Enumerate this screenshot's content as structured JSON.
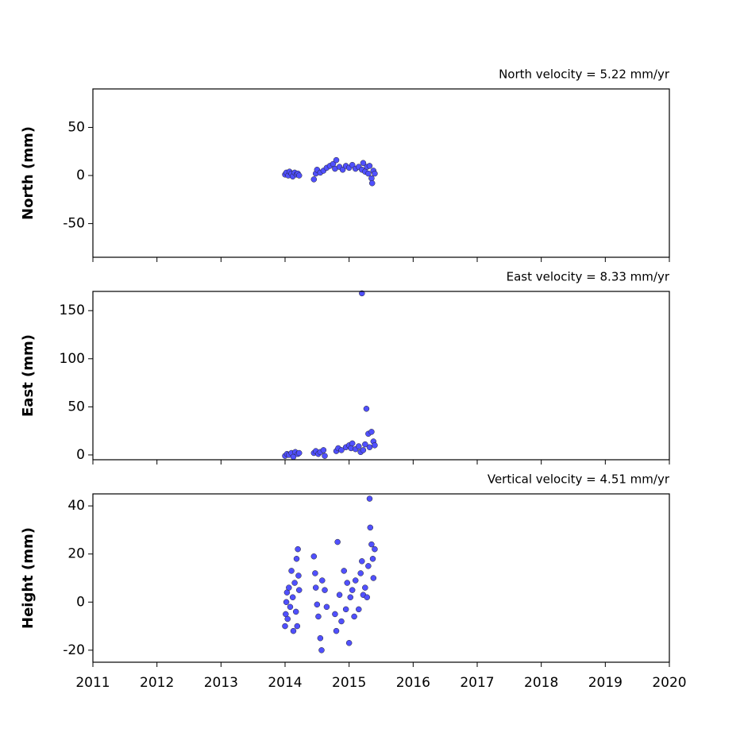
{
  "chart_data": [
    {
      "type": "scatter",
      "title": "North velocity = 5.22 mm/yr",
      "y_label": "North (mm)",
      "color": "#5050ff",
      "x": [
        2014.0,
        2014.02,
        2014.05,
        2014.07,
        2014.1,
        2014.12,
        2014.15,
        2014.18,
        2014.2,
        2014.22,
        2014.45,
        2014.48,
        2014.5,
        2014.55,
        2014.6,
        2014.65,
        2014.7,
        2014.75,
        2014.78,
        2014.8,
        2014.85,
        2014.9,
        2014.95,
        2015.0,
        2015.05,
        2015.1,
        2015.15,
        2015.2,
        2015.22,
        2015.25,
        2015.28,
        2015.3,
        2015.32,
        2015.35,
        2015.36,
        2015.38,
        2015.4
      ],
      "values": [
        1,
        3,
        0,
        4,
        2,
        -1,
        3,
        1,
        2,
        0,
        -4,
        2,
        6,
        3,
        5,
        8,
        10,
        12,
        7,
        16,
        9,
        6,
        10,
        8,
        11,
        7,
        9,
        6,
        13,
        4,
        9,
        2,
        10,
        -3,
        -8,
        5,
        2
      ],
      "xlim": [
        2011,
        2020
      ],
      "xticks": [
        2011,
        2012,
        2013,
        2014,
        2015,
        2016,
        2017,
        2018,
        2019,
        2020
      ],
      "ylim": [
        -85,
        90
      ],
      "yticks": [
        -50,
        0,
        50
      ]
    },
    {
      "type": "scatter",
      "title": "East velocity = 8.33 mm/yr",
      "y_label": "East (mm)",
      "color": "#5050ff",
      "x": [
        2014.0,
        2014.03,
        2014.06,
        2014.1,
        2014.13,
        2014.16,
        2014.2,
        2014.22,
        2014.45,
        2014.48,
        2014.52,
        2014.55,
        2014.6,
        2014.62,
        2014.8,
        2014.83,
        2014.88,
        2014.95,
        2015.0,
        2015.03,
        2015.05,
        2015.1,
        2015.15,
        2015.18,
        2015.2,
        2015.22,
        2015.25,
        2015.27,
        2015.3,
        2015.32,
        2015.35,
        2015.38,
        2015.4
      ],
      "values": [
        -1,
        1,
        0,
        2,
        -2,
        3,
        1,
        2,
        2,
        4,
        1,
        3,
        5,
        -1,
        4,
        7,
        5,
        8,
        10,
        7,
        12,
        6,
        9,
        3,
        168,
        5,
        11,
        48,
        22,
        8,
        24,
        14,
        10
      ],
      "xlim": [
        2011,
        2020
      ],
      "xticks": [
        2011,
        2012,
        2013,
        2014,
        2015,
        2016,
        2017,
        2018,
        2019,
        2020
      ],
      "ylim": [
        -5,
        170
      ],
      "yticks": [
        0,
        50,
        100,
        150
      ]
    },
    {
      "type": "scatter",
      "title": "Vertical velocity = 4.51 mm/yr",
      "y_label": "Height (mm)",
      "color": "#5050ff",
      "x": [
        2014.0,
        2014.01,
        2014.02,
        2014.03,
        2014.04,
        2014.06,
        2014.08,
        2014.1,
        2014.12,
        2014.13,
        2014.15,
        2014.17,
        2014.18,
        2014.19,
        2014.2,
        2014.21,
        2014.22,
        2014.45,
        2014.47,
        2014.48,
        2014.5,
        2014.52,
        2014.55,
        2014.57,
        2014.58,
        2014.62,
        2014.65,
        2014.78,
        2014.8,
        2014.82,
        2014.85,
        2014.88,
        2014.92,
        2014.95,
        2014.97,
        2015.0,
        2015.02,
        2015.05,
        2015.08,
        2015.1,
        2015.15,
        2015.18,
        2015.2,
        2015.22,
        2015.25,
        2015.28,
        2015.3,
        2015.32,
        2015.33,
        2015.35,
        2015.37,
        2015.38,
        2015.4
      ],
      "values": [
        -10,
        -5,
        0,
        4,
        -7,
        6,
        -2,
        13,
        2,
        -12,
        8,
        -4,
        18,
        -10,
        22,
        11,
        5,
        19,
        12,
        6,
        -1,
        -6,
        -15,
        -20,
        9,
        5,
        -2,
        -5,
        -12,
        25,
        3,
        -8,
        13,
        -3,
        8,
        -17,
        2,
        5,
        -6,
        9,
        -3,
        12,
        17,
        3,
        6,
        2,
        15,
        43,
        31,
        24,
        18,
        10,
        22
      ],
      "xlim": [
        2011,
        2020
      ],
      "xticks": [
        2011,
        2012,
        2013,
        2014,
        2015,
        2016,
        2017,
        2018,
        2019,
        2020
      ],
      "ylim": [
        -25,
        45
      ],
      "yticks": [
        -20,
        0,
        20,
        40
      ]
    }
  ]
}
